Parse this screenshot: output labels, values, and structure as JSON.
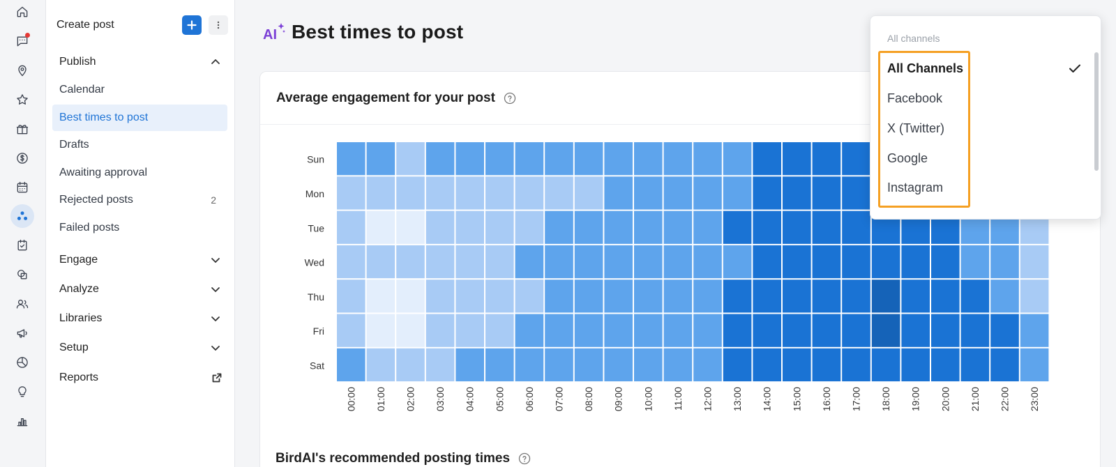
{
  "nav": {
    "create_post": "Create post",
    "publish": "Publish",
    "items": [
      {
        "label": "Calendar",
        "count": ""
      },
      {
        "label": "Best times to post",
        "count": ""
      },
      {
        "label": "Drafts",
        "count": ""
      },
      {
        "label": "Awaiting approval",
        "count": ""
      },
      {
        "label": "Rejected posts",
        "count": "2"
      },
      {
        "label": "Failed posts",
        "count": ""
      }
    ],
    "sections": [
      "Engage",
      "Analyze",
      "Libraries",
      "Setup"
    ],
    "reports": "Reports"
  },
  "page": {
    "title": "Best times to post",
    "card_title": "Average engagement for your post",
    "recommended_title": "BirdAI's recommended posting times"
  },
  "dropdown": {
    "header": "All channels",
    "options": [
      "All Channels",
      "Facebook",
      "X (Twitter)",
      "Google",
      "Instagram"
    ],
    "selected": "All Channels"
  },
  "colors": {
    "accent": "#1f74d6",
    "highlight": "#f5a023",
    "heat_scale": [
      "#e3eefc",
      "#a8cbf5",
      "#5ea4ec",
      "#1a73d4",
      "#1563b8"
    ]
  },
  "chart_data": {
    "type": "heatmap",
    "rows": [
      "Sun",
      "Mon",
      "Tue",
      "Wed",
      "Thu",
      "Fri",
      "Sat"
    ],
    "columns": [
      "00:00",
      "01:00",
      "02:00",
      "03:00",
      "04:00",
      "05:00",
      "06:00",
      "07:00",
      "08:00",
      "09:00",
      "10:00",
      "11:00",
      "12:00",
      "13:00",
      "14:00",
      "15:00",
      "16:00",
      "17:00",
      "18:00",
      "19:00",
      "20:00",
      "21:00",
      "22:00",
      "23:00"
    ],
    "values": [
      [
        2,
        2,
        1,
        2,
        2,
        2,
        2,
        2,
        2,
        2,
        2,
        2,
        2,
        2,
        3,
        3,
        3,
        3,
        3,
        3,
        3,
        3,
        3,
        2
      ],
      [
        1,
        1,
        1,
        1,
        1,
        1,
        1,
        1,
        1,
        2,
        2,
        2,
        2,
        2,
        3,
        3,
        3,
        3,
        3,
        3,
        3,
        3,
        2,
        2
      ],
      [
        1,
        0,
        0,
        1,
        1,
        1,
        1,
        2,
        2,
        2,
        2,
        2,
        2,
        3,
        3,
        3,
        3,
        3,
        3,
        3,
        3,
        2,
        2,
        1
      ],
      [
        1,
        1,
        1,
        1,
        1,
        1,
        2,
        2,
        2,
        2,
        2,
        2,
        2,
        2,
        3,
        3,
        3,
        3,
        3,
        3,
        3,
        2,
        2,
        1
      ],
      [
        1,
        0,
        0,
        1,
        1,
        1,
        1,
        2,
        2,
        2,
        2,
        2,
        2,
        3,
        3,
        3,
        3,
        3,
        4,
        3,
        3,
        3,
        2,
        1
      ],
      [
        1,
        0,
        0,
        1,
        1,
        1,
        2,
        2,
        2,
        2,
        2,
        2,
        2,
        3,
        3,
        3,
        3,
        3,
        4,
        3,
        3,
        3,
        3,
        2
      ],
      [
        2,
        1,
        1,
        1,
        2,
        2,
        2,
        2,
        2,
        2,
        2,
        2,
        2,
        3,
        3,
        3,
        3,
        3,
        3,
        3,
        3,
        3,
        3,
        2
      ]
    ]
  }
}
